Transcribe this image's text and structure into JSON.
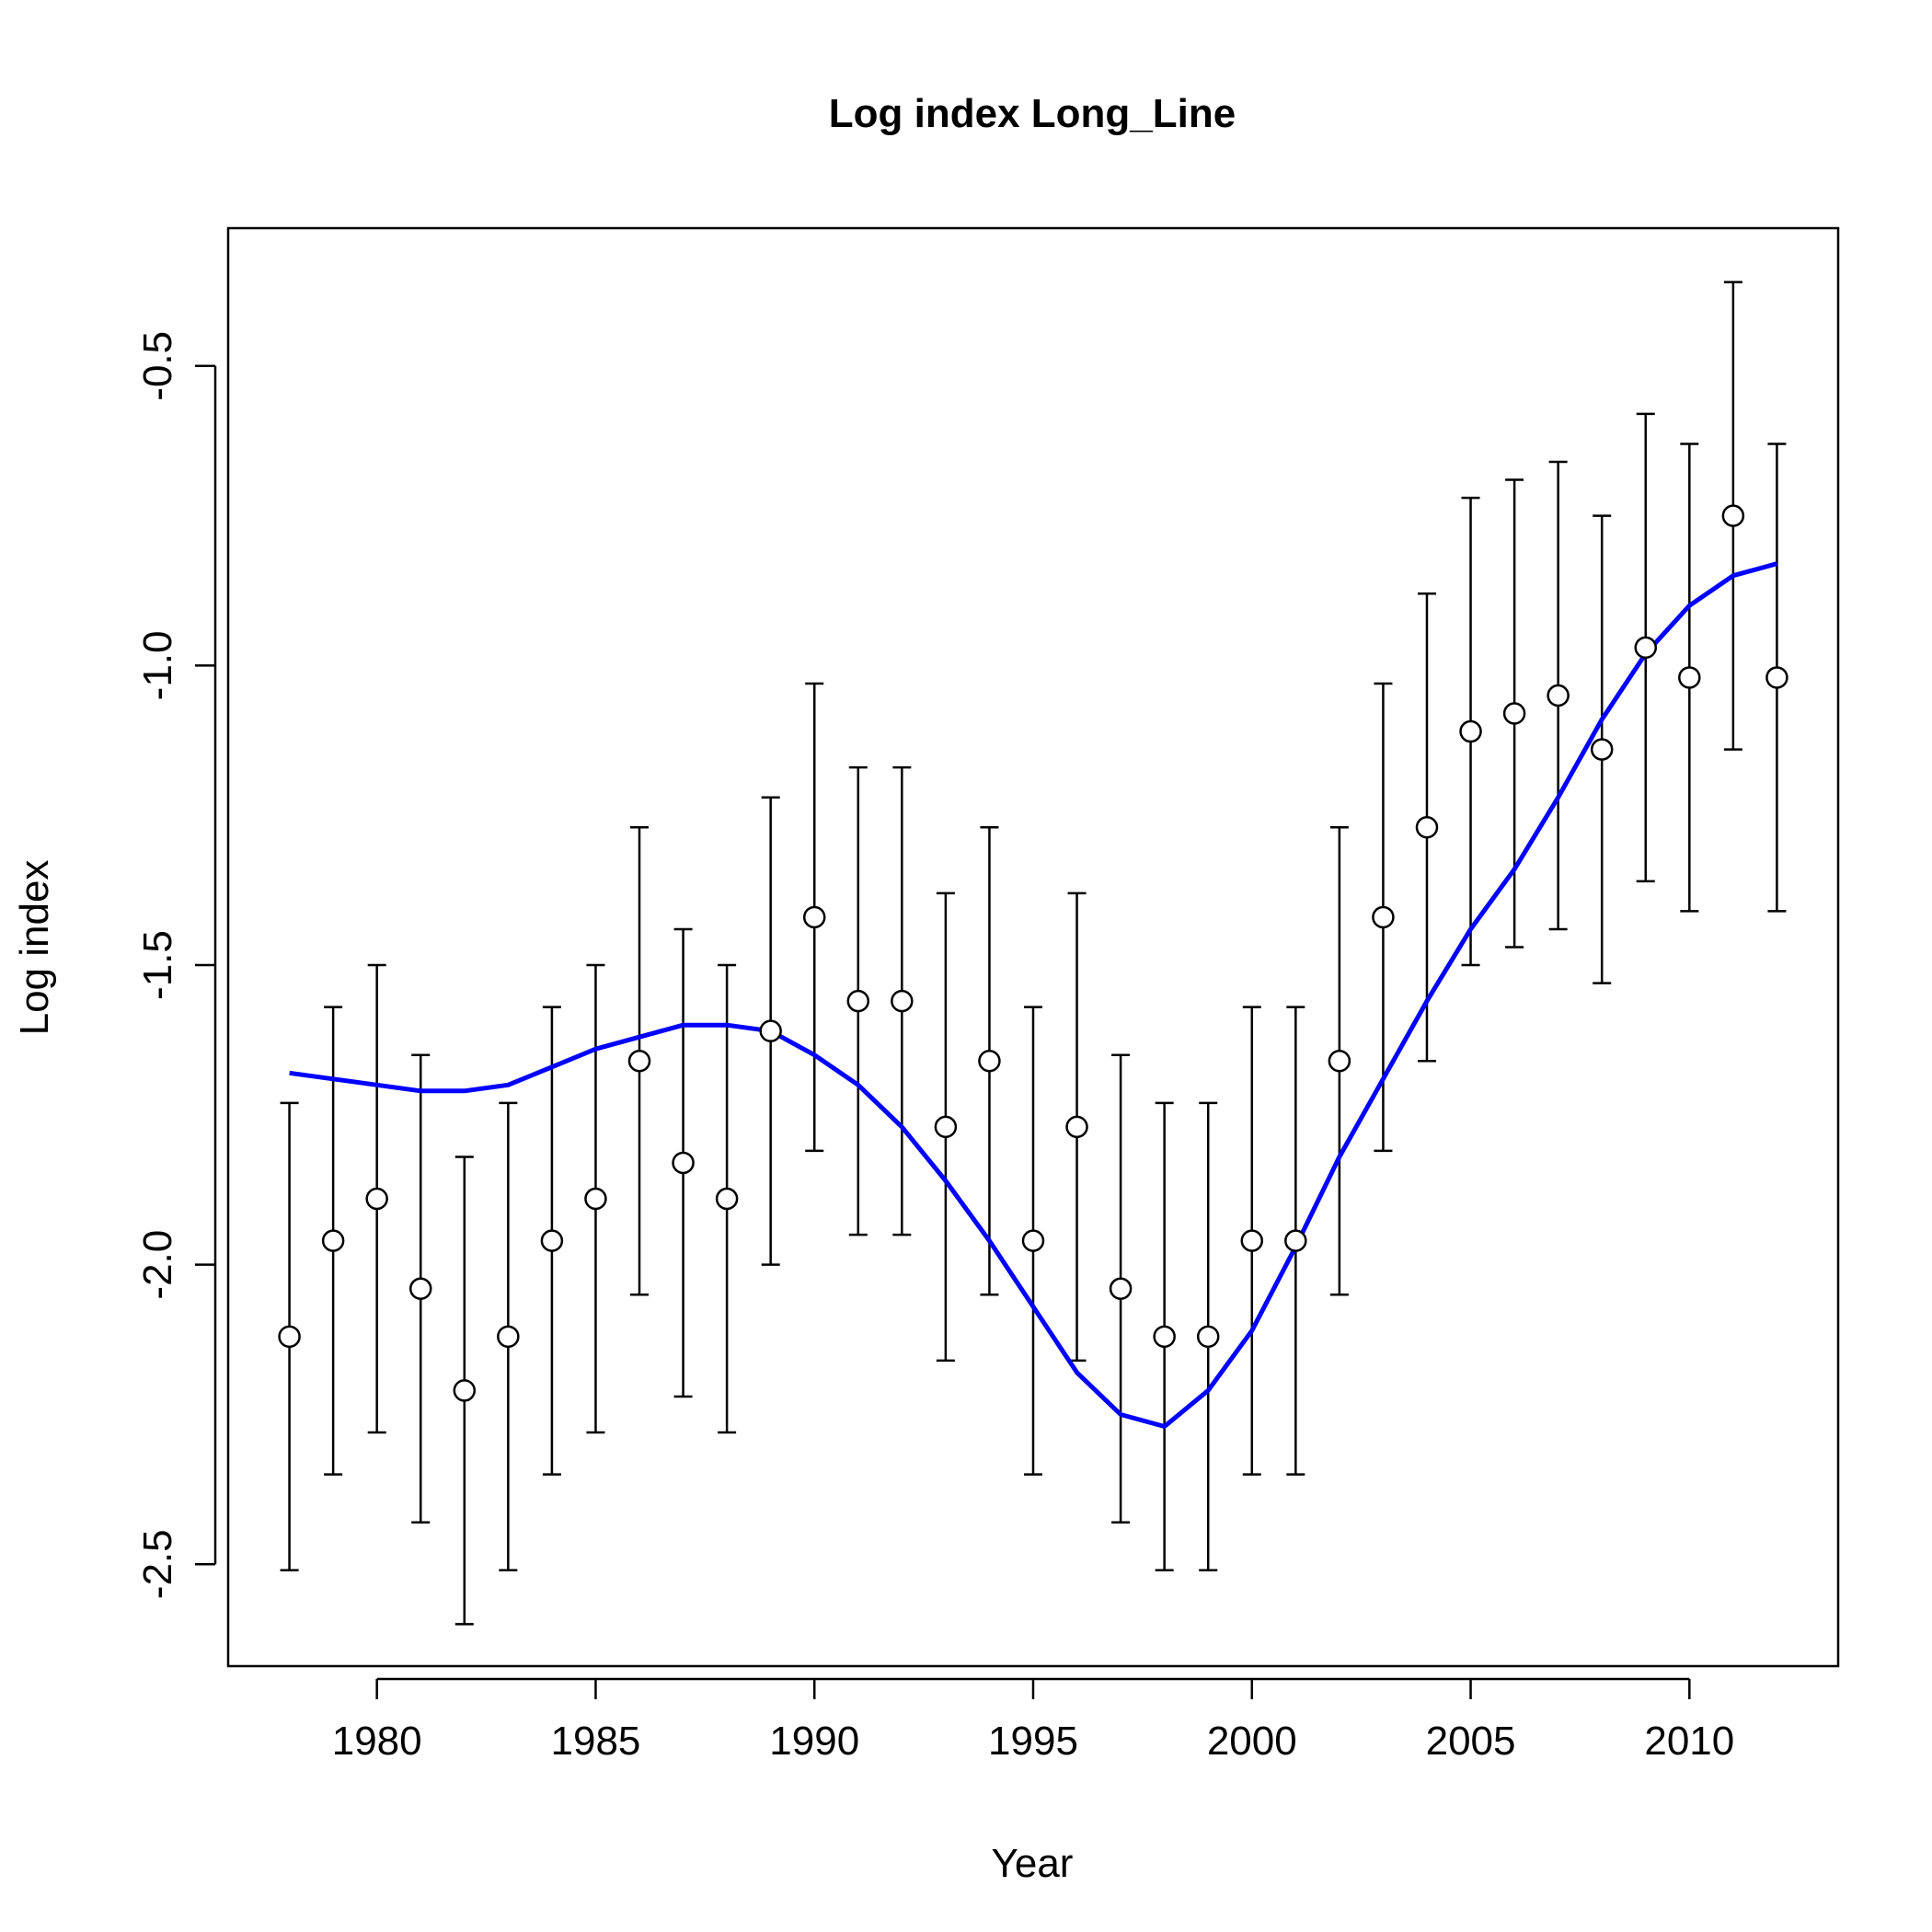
{
  "chart_data": {
    "type": "scatter",
    "title": "Log index Long_Line",
    "xlabel": "Year",
    "ylabel": "Log index",
    "xlim": [
      1976.6,
      2013.4
    ],
    "ylim": [
      -2.67,
      -0.27
    ],
    "x_ticks": [
      1980,
      1985,
      1990,
      1995,
      2000,
      2005,
      2010
    ],
    "x_tick_labels": [
      "1980",
      "1985",
      "1990",
      "1995",
      "2000",
      "2005",
      "2010"
    ],
    "y_ticks": [
      -2.5,
      -2.0,
      -1.5,
      -1.0,
      -0.5
    ],
    "y_tick_labels": [
      "-2.5",
      "-2.0",
      "-1.5",
      "-1.0",
      "-0.5"
    ],
    "grid": false,
    "colors": {
      "observed": "#000000",
      "fitted": "#0000ff"
    },
    "series": [
      {
        "kind": "points_with_error_bars",
        "x": [
          1978,
          1979,
          1980,
          1981,
          1982,
          1983,
          1984,
          1985,
          1986,
          1987,
          1988,
          1989,
          1990,
          1991,
          1992,
          1993,
          1994,
          1995,
          1996,
          1997,
          1998,
          1999,
          2000,
          2001,
          2002,
          2003,
          2004,
          2005,
          2006,
          2007,
          2008,
          2009,
          2010,
          2011,
          2012
        ],
        "y": [
          -2.12,
          -1.96,
          -1.89,
          -2.04,
          -2.21,
          -2.12,
          -1.96,
          -1.89,
          -1.66,
          -1.83,
          -1.89,
          -1.61,
          -1.42,
          -1.56,
          -1.56,
          -1.77,
          -1.66,
          -1.96,
          -1.77,
          -2.04,
          -2.12,
          -2.12,
          -1.96,
          -1.96,
          -1.66,
          -1.42,
          -1.27,
          -1.11,
          -1.08,
          -1.05,
          -1.14,
          -0.97,
          -1.02,
          -0.75,
          -1.02
        ],
        "lower": [
          -2.51,
          -2.35,
          -2.28,
          -2.43,
          -2.6,
          -2.51,
          -2.35,
          -2.28,
          -2.05,
          -2.22,
          -2.28,
          -2.0,
          -1.81,
          -1.95,
          -1.95,
          -2.16,
          -2.05,
          -2.35,
          -2.16,
          -2.43,
          -2.51,
          -2.51,
          -2.35,
          -2.35,
          -2.05,
          -1.81,
          -1.66,
          -1.5,
          -1.47,
          -1.44,
          -1.53,
          -1.36,
          -1.41,
          -1.14,
          -1.41
        ],
        "upper": [
          -1.73,
          -1.57,
          -1.5,
          -1.65,
          -1.82,
          -1.73,
          -1.57,
          -1.5,
          -1.27,
          -1.44,
          -1.5,
          -1.22,
          -1.03,
          -1.17,
          -1.17,
          -1.38,
          -1.27,
          -1.57,
          -1.38,
          -1.65,
          -1.73,
          -1.73,
          -1.57,
          -1.57,
          -1.27,
          -1.03,
          -0.88,
          -0.72,
          -0.69,
          -0.66,
          -0.75,
          -0.58,
          -0.63,
          -0.36,
          -0.63
        ]
      },
      {
        "kind": "line",
        "x": [
          1978,
          1979,
          1980,
          1981,
          1982,
          1983,
          1984,
          1985,
          1986,
          1987,
          1988,
          1989,
          1990,
          1991,
          1992,
          1993,
          1994,
          1995,
          1996,
          1997,
          1998,
          1999,
          2000,
          2001,
          2002,
          2003,
          2004,
          2005,
          2006,
          2007,
          2008,
          2009,
          2010,
          2011,
          2012
        ],
        "y": [
          -1.68,
          -1.69,
          -1.7,
          -1.71,
          -1.71,
          -1.7,
          -1.67,
          -1.64,
          -1.62,
          -1.6,
          -1.6,
          -1.61,
          -1.65,
          -1.7,
          -1.77,
          -1.86,
          -1.96,
          -2.07,
          -2.18,
          -2.25,
          -2.27,
          -2.21,
          -2.11,
          -1.97,
          -1.82,
          -1.69,
          -1.56,
          -1.44,
          -1.34,
          -1.22,
          -1.09,
          -0.98,
          -0.9,
          -0.85,
          -0.83
        ]
      }
    ]
  }
}
